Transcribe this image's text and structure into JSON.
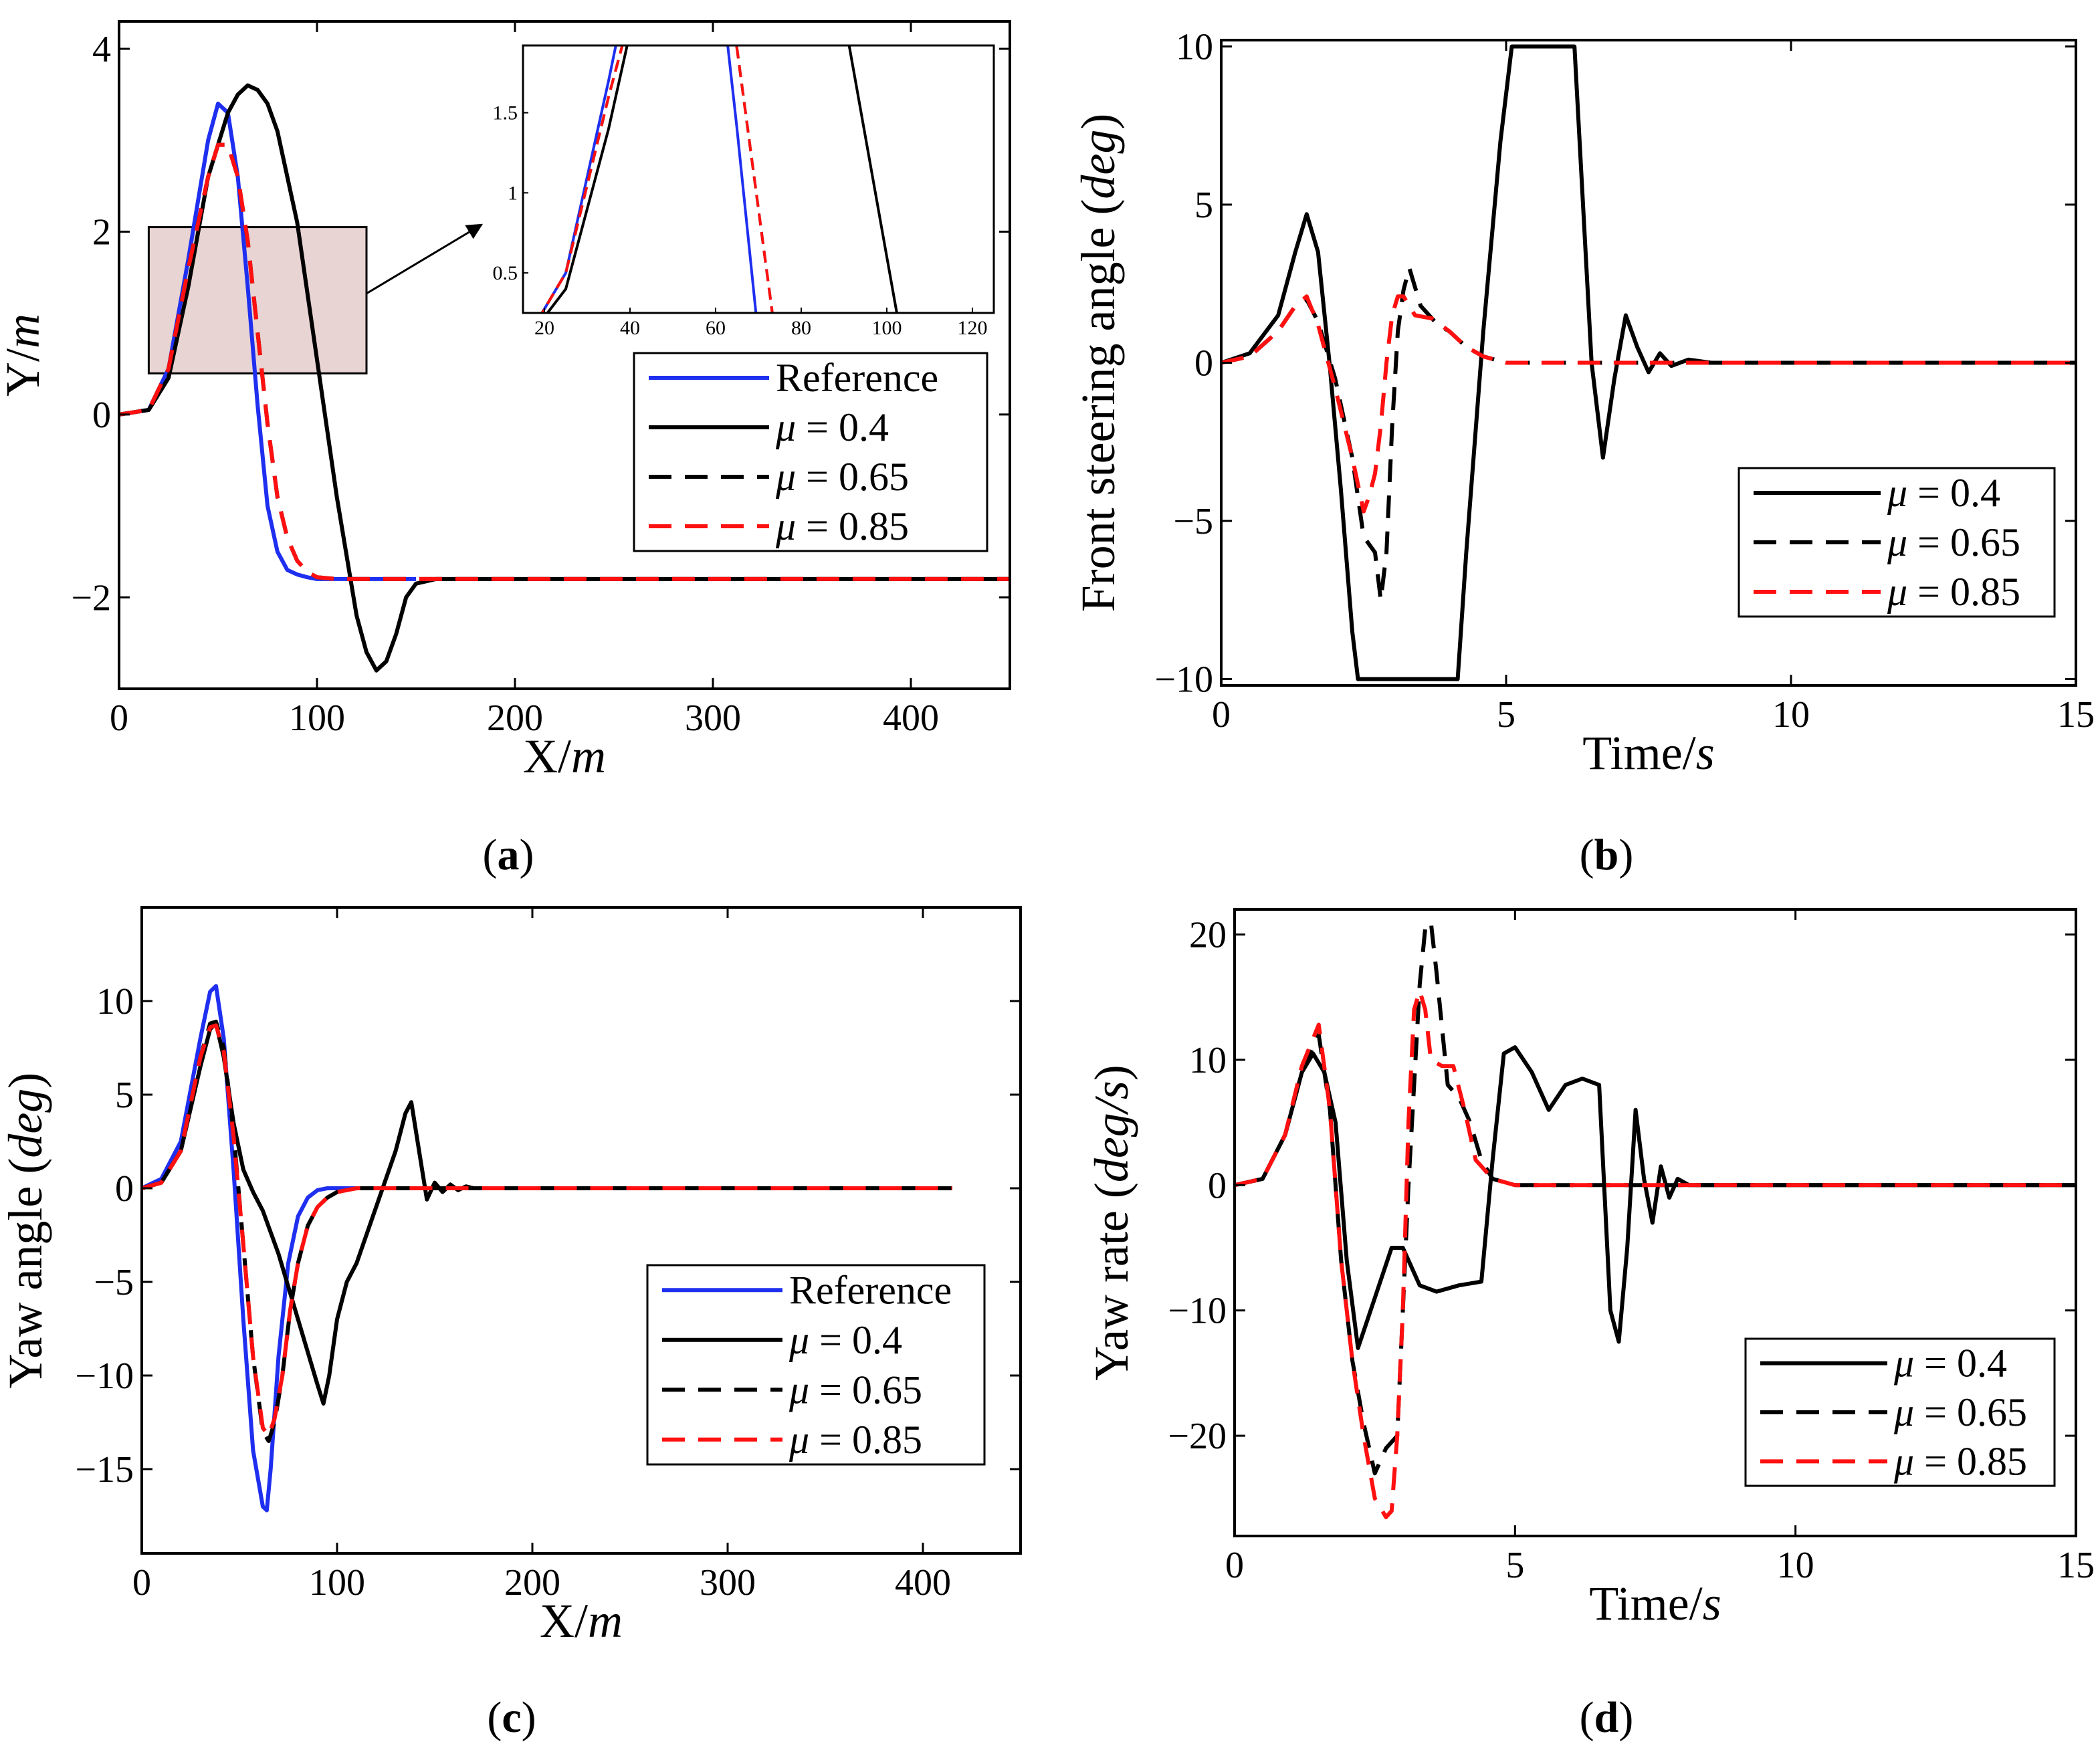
{
  "colors": {
    "reference": "#1f2ff0",
    "mu04": "#000000",
    "mu065": "#000000",
    "mu085": "#ff1010",
    "zoom_box": "#e8d4d2"
  },
  "chart_data": [
    {
      "id": "a",
      "type": "line",
      "panel_label": "a",
      "xlabel": "X",
      "xlabel_unit": "m",
      "ylabel": "Y",
      "ylabel_unit": "m",
      "xlim": [
        0,
        450
      ],
      "ylim": [
        -3,
        4.3
      ],
      "xticks": [
        0,
        100,
        200,
        300,
        400
      ],
      "yticks": [
        -2,
        0,
        2,
        4
      ],
      "xtick_labels": [
        "0",
        "100",
        "200",
        "300",
        "400"
      ],
      "ytick_labels": [
        "−2",
        "0",
        "2",
        "4"
      ],
      "legend": [
        "Reference",
        "μ = 0.4",
        "μ = 0.65",
        "μ = 0.85"
      ],
      "series": [
        {
          "name": "Reference",
          "style": "reference",
          "x": [
            0,
            15,
            25,
            35,
            45,
            50,
            55,
            60,
            65,
            70,
            75,
            80,
            85,
            90,
            95,
            100,
            110,
            120,
            130,
            140,
            150
          ],
          "y": [
            0,
            0.05,
            0.5,
            1.7,
            3.0,
            3.4,
            3.3,
            2.6,
            1.4,
            0.1,
            -1.0,
            -1.5,
            -1.7,
            -1.75,
            -1.78,
            -1.8,
            -1.8,
            -1.8,
            -1.8,
            -1.8,
            -1.8
          ]
        },
        {
          "name": "μ = 0.4",
          "style": "mu04",
          "x": [
            0,
            15,
            25,
            35,
            45,
            55,
            60,
            65,
            70,
            75,
            80,
            90,
            100,
            110,
            120,
            125,
            130,
            135,
            140,
            145,
            150,
            160,
            170,
            200,
            250,
            300,
            350,
            400,
            450
          ],
          "y": [
            0,
            0.05,
            0.4,
            1.4,
            2.6,
            3.3,
            3.5,
            3.6,
            3.55,
            3.4,
            3.1,
            2.1,
            0.6,
            -0.9,
            -2.2,
            -2.6,
            -2.8,
            -2.7,
            -2.4,
            -2.0,
            -1.85,
            -1.8,
            -1.8,
            -1.8,
            -1.8,
            -1.8,
            -1.8,
            -1.8,
            -1.8
          ]
        },
        {
          "name": "μ = 0.65",
          "style": "mu065",
          "x": [
            0,
            15,
            25,
            35,
            45,
            50,
            55,
            60,
            65,
            70,
            75,
            80,
            85,
            90,
            95,
            100,
            110,
            150,
            200,
            250,
            300,
            350,
            400,
            450
          ],
          "y": [
            0,
            0.05,
            0.5,
            1.6,
            2.6,
            2.95,
            2.95,
            2.6,
            1.9,
            0.9,
            -0.1,
            -0.9,
            -1.35,
            -1.6,
            -1.72,
            -1.78,
            -1.8,
            -1.8,
            -1.8,
            -1.8,
            -1.8,
            -1.8,
            -1.8,
            -1.8
          ]
        },
        {
          "name": "μ = 0.85",
          "style": "mu085",
          "x": [
            0,
            15,
            25,
            35,
            45,
            50,
            55,
            60,
            65,
            70,
            75,
            80,
            85,
            90,
            95,
            100,
            110,
            150,
            200,
            250,
            300,
            350,
            400,
            450
          ],
          "y": [
            0,
            0.05,
            0.5,
            1.6,
            2.6,
            2.95,
            2.95,
            2.6,
            1.9,
            0.9,
            -0.1,
            -0.9,
            -1.35,
            -1.6,
            -1.72,
            -1.78,
            -1.8,
            -1.8,
            -1.8,
            -1.8,
            -1.8,
            -1.8,
            -1.8,
            -1.8
          ]
        }
      ],
      "zoom_region": {
        "xlim": [
          15,
          125
        ],
        "ylim": [
          0.45,
          2.05
        ]
      },
      "inset": {
        "xlim": [
          15,
          125
        ],
        "ylim": [
          0.25,
          1.92
        ],
        "xticks": [
          20,
          40,
          60,
          80,
          100,
          120
        ],
        "yticks": [
          0.5,
          1,
          1.5
        ],
        "xtick_labels": [
          "20",
          "40",
          "60",
          "80",
          "100",
          "120"
        ],
        "ytick_labels": [
          "0.5",
          "1",
          "1.5"
        ]
      }
    },
    {
      "id": "b",
      "type": "line",
      "panel_label": "b",
      "xlabel": "Time",
      "xlabel_unit": "s",
      "ylabel": "Front steering angle",
      "ylabel_unit": "deg",
      "xlim": [
        0,
        15
      ],
      "ylim": [
        -10.2,
        10.2
      ],
      "xticks": [
        0,
        5,
        10,
        15
      ],
      "yticks": [
        -10,
        -5,
        0,
        5,
        10
      ],
      "xtick_labels": [
        "0",
        "5",
        "10",
        "15"
      ],
      "ytick_labels": [
        "−10",
        "−5",
        "0",
        "5",
        "10"
      ],
      "legend": [
        "μ = 0.4",
        "μ = 0.65",
        "μ = 0.85"
      ],
      "series": [
        {
          "name": "μ = 0.4",
          "style": "mu04",
          "x": [
            0,
            0.5,
            1.0,
            1.3,
            1.5,
            1.7,
            1.9,
            2.1,
            2.3,
            2.4,
            2.5,
            3.0,
            3.5,
            4.0,
            4.15,
            4.3,
            4.6,
            4.9,
            5.1,
            5.5,
            5.9,
            6.2,
            6.5,
            6.7,
            6.9,
            7.1,
            7.3,
            7.5,
            7.7,
            7.9,
            8.2,
            8.6,
            9,
            10,
            12,
            15
          ],
          "y": [
            0,
            0.3,
            1.5,
            3.5,
            4.7,
            3.5,
            0,
            -4,
            -8.5,
            -10,
            -10,
            -10,
            -10,
            -10,
            -10,
            -6,
            1,
            7,
            10,
            10,
            10,
            10,
            0,
            -3,
            -0.5,
            1.5,
            0.5,
            -0.3,
            0.3,
            -0.1,
            0.1,
            0,
            0,
            0,
            0,
            0
          ]
        },
        {
          "name": "μ = 0.65",
          "style": "mu065",
          "x": [
            0,
            0.5,
            1.0,
            1.3,
            1.5,
            1.7,
            2.0,
            2.3,
            2.5,
            2.7,
            2.8,
            2.9,
            3.0,
            3.1,
            3.2,
            3.3,
            3.5,
            3.8,
            4.0,
            4.3,
            4.6,
            5.0,
            6,
            8,
            10,
            12,
            15
          ],
          "y": [
            0,
            0.2,
            1.0,
            1.8,
            2.0,
            1.3,
            -0.5,
            -3,
            -5.5,
            -6,
            -7.5,
            -6,
            -2,
            1,
            2.3,
            3,
            1.8,
            1.2,
            1,
            0.5,
            0.2,
            0,
            0,
            0,
            0,
            0,
            0
          ]
        },
        {
          "name": "μ = 0.85",
          "style": "mu085",
          "x": [
            0,
            0.5,
            1.0,
            1.3,
            1.5,
            1.7,
            2.0,
            2.3,
            2.5,
            2.6,
            2.7,
            2.8,
            2.9,
            3.0,
            3.1,
            3.2,
            3.4,
            3.7,
            4.0,
            4.3,
            4.6,
            5.0,
            6,
            8,
            10,
            12,
            15
          ],
          "y": [
            0,
            0.2,
            1.0,
            1.8,
            2.1,
            1.2,
            -0.8,
            -3,
            -4.7,
            -4.2,
            -3.5,
            -2,
            0,
            1.5,
            2.1,
            2.1,
            1.5,
            1.4,
            1.0,
            0.5,
            0.2,
            0,
            0,
            0,
            0,
            0,
            0
          ]
        }
      ]
    },
    {
      "id": "c",
      "type": "line",
      "panel_label": "c",
      "xlabel": "X",
      "xlabel_unit": "m",
      "ylabel": "Yaw angle",
      "ylabel_unit": "deg",
      "xlim": [
        0,
        450
      ],
      "ylim": [
        -19.5,
        15
      ],
      "xticks": [
        0,
        100,
        200,
        300,
        400
      ],
      "yticks": [
        -15,
        -10,
        -5,
        0,
        5,
        10
      ],
      "xtick_labels": [
        "0",
        "100",
        "200",
        "300",
        "400"
      ],
      "ytick_labels": [
        "−15",
        "−10",
        "−5",
        "0",
        "5",
        "10"
      ],
      "legend": [
        "Reference",
        "μ = 0.4",
        "μ = 0.65",
        "μ = 0.85"
      ],
      "series": [
        {
          "name": "Reference",
          "style": "reference",
          "x": [
            0,
            10,
            20,
            30,
            35,
            38,
            42,
            47,
            52,
            57,
            62,
            64,
            66,
            70,
            75,
            80,
            85,
            90,
            95,
            100,
            110,
            120
          ],
          "y": [
            0,
            0.5,
            2.5,
            8,
            10.5,
            10.8,
            8,
            1,
            -7,
            -14,
            -17,
            -17.2,
            -15,
            -9,
            -4,
            -1.5,
            -0.5,
            -0.1,
            0,
            0,
            0,
            0
          ]
        },
        {
          "name": "μ = 0.4",
          "style": "mu04",
          "x": [
            0,
            10,
            20,
            30,
            35,
            38,
            42,
            47,
            52,
            57,
            62,
            70,
            80,
            90,
            93,
            96,
            100,
            105,
            110,
            120,
            125,
            130,
            135,
            138,
            142,
            146,
            150,
            154,
            158,
            162,
            166,
            170,
            180,
            200,
            300,
            400,
            415
          ],
          "y": [
            0,
            0.3,
            2,
            6.5,
            8.5,
            8.8,
            7,
            3.5,
            1,
            -0.2,
            -1.2,
            -3.5,
            -7,
            -10.5,
            -11.5,
            -10,
            -7,
            -5,
            -4,
            -1,
            0.5,
            2,
            4,
            4.6,
            2,
            -0.6,
            0.3,
            -0.2,
            0.2,
            -0.1,
            0.1,
            0,
            0,
            0,
            0,
            0,
            0
          ]
        },
        {
          "name": "μ = 0.65",
          "style": "mu065",
          "x": [
            0,
            10,
            20,
            30,
            35,
            38,
            42,
            47,
            52,
            57,
            62,
            65,
            68,
            72,
            76,
            80,
            85,
            90,
            95,
            100,
            110,
            120,
            200,
            300,
            400,
            415
          ],
          "y": [
            0,
            0.3,
            2,
            7,
            8.8,
            8.9,
            7.5,
            3,
            -3,
            -9,
            -13,
            -13.5,
            -12.5,
            -10,
            -6.5,
            -4,
            -2,
            -1,
            -0.5,
            -0.2,
            0,
            0,
            0,
            0,
            0,
            0
          ]
        },
        {
          "name": "μ = 0.85",
          "style": "mu085",
          "x": [
            0,
            10,
            20,
            30,
            35,
            38,
            42,
            47,
            52,
            57,
            62,
            65,
            68,
            72,
            76,
            80,
            85,
            90,
            95,
            100,
            110,
            120,
            200,
            300,
            400,
            415
          ],
          "y": [
            0,
            0.3,
            2,
            7,
            8.6,
            8.7,
            7.3,
            2.8,
            -3,
            -9,
            -12.8,
            -13.2,
            -12.3,
            -10,
            -6.5,
            -4,
            -2,
            -1,
            -0.5,
            -0.2,
            0,
            0,
            0,
            0,
            0,
            0
          ]
        }
      ]
    },
    {
      "id": "d",
      "type": "line",
      "panel_label": "d",
      "xlabel": "Time",
      "xlabel_unit": "s",
      "ylabel": "Yaw rate",
      "ylabel_unit": "deg/s",
      "xlim": [
        0,
        15
      ],
      "ylim": [
        -28,
        22
      ],
      "xticks": [
        0,
        5,
        10,
        15
      ],
      "yticks": [
        -20,
        -10,
        0,
        10,
        20
      ],
      "xtick_labels": [
        "0",
        "5",
        "10",
        "15"
      ],
      "ytick_labels": [
        "−20",
        "−10",
        "0",
        "10",
        "20"
      ],
      "legend": [
        "μ = 0.4",
        "μ = 0.65",
        "μ = 0.85"
      ],
      "series": [
        {
          "name": "μ = 0.4",
          "style": "mu04",
          "x": [
            0,
            0.5,
            0.9,
            1.2,
            1.4,
            1.6,
            1.8,
            2.0,
            2.2,
            2.5,
            2.8,
            3.0,
            3.3,
            3.6,
            4.0,
            4.4,
            4.6,
            4.8,
            5.0,
            5.3,
            5.6,
            5.9,
            6.2,
            6.5,
            6.7,
            6.85,
            7.0,
            7.15,
            7.3,
            7.45,
            7.6,
            7.75,
            7.9,
            8.1,
            8.4,
            8.8,
            10,
            15
          ],
          "y": [
            0,
            0.5,
            4,
            9,
            10.5,
            9,
            5,
            -6,
            -13,
            -9,
            -5,
            -5,
            -8,
            -8.5,
            -8,
            -7.7,
            2,
            10.5,
            11,
            9,
            6,
            8,
            8.5,
            8,
            -10,
            -12.5,
            -5,
            6,
            0.5,
            -3,
            1.5,
            -1,
            0.5,
            0,
            0,
            0,
            0,
            0
          ]
        },
        {
          "name": "μ = 0.65",
          "style": "mu065",
          "x": [
            0,
            0.5,
            0.9,
            1.2,
            1.5,
            1.7,
            1.9,
            2.1,
            2.3,
            2.5,
            2.7,
            2.9,
            3.0,
            3.1,
            3.2,
            3.3,
            3.4,
            3.5,
            3.6,
            3.8,
            4.0,
            4.2,
            4.4,
            4.6,
            5,
            6,
            8,
            10,
            15
          ],
          "y": [
            0,
            0.5,
            4,
            9,
            12,
            6,
            -6,
            -14,
            -19,
            -23,
            -21,
            -20,
            -10,
            0,
            8,
            16,
            20.5,
            21,
            17,
            8,
            7,
            5,
            2,
            0.5,
            0,
            0,
            0,
            0,
            0
          ]
        },
        {
          "name": "μ = 0.85",
          "style": "mu085",
          "x": [
            0,
            0.5,
            0.9,
            1.2,
            1.5,
            1.7,
            1.9,
            2.1,
            2.3,
            2.5,
            2.7,
            2.8,
            2.9,
            3.0,
            3.1,
            3.2,
            3.3,
            3.4,
            3.5,
            3.7,
            3.9,
            4.1,
            4.3,
            4.6,
            5,
            6,
            8,
            10,
            15
          ],
          "y": [
            0,
            0.5,
            4,
            9.5,
            12.8,
            6,
            -6,
            -14,
            -20,
            -25,
            -26.5,
            -26,
            -20,
            -10,
            5,
            14,
            15.5,
            14,
            10,
            9.5,
            9.5,
            6,
            2,
            0.5,
            0,
            0,
            0,
            0,
            0
          ]
        }
      ]
    }
  ]
}
